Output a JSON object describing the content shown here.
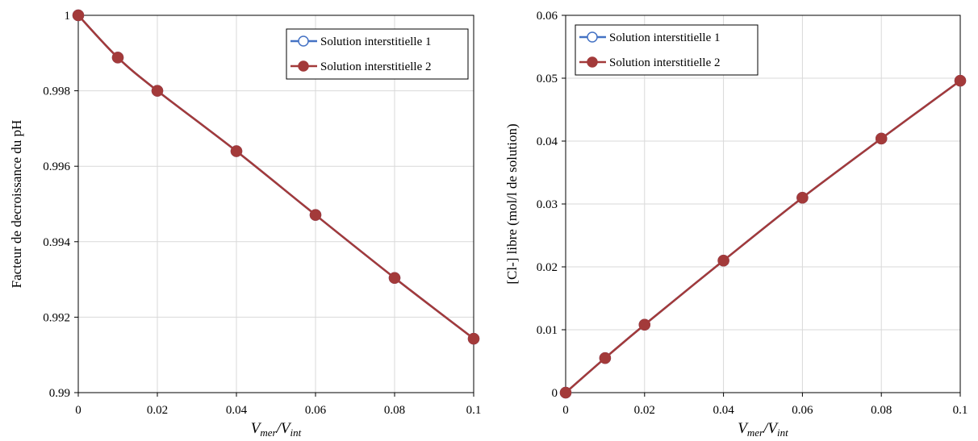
{
  "chart_data": [
    {
      "type": "line",
      "xlabel": "V_mer/V_int",
      "xlabel_main": "V",
      "xlabel_sub1": "mer",
      "xlabel_sep": "/V",
      "xlabel_sub2": "int",
      "ylabel": "Facteur de decroissance  du pH",
      "x": [
        0,
        0.01,
        0.02,
        0.04,
        0.06,
        0.08,
        0.1
      ],
      "xlim": [
        0,
        0.1
      ],
      "ylim": [
        0.99,
        1
      ],
      "x_ticks": [
        "0",
        "0.02",
        "0.04",
        "0.06",
        "0.08",
        "0.1"
      ],
      "y_ticks": [
        "0.99",
        "0.992",
        "0.994",
        "0.996",
        "0.998",
        "1"
      ],
      "grid": true,
      "legend_position": "top-right",
      "series": [
        {
          "name": "Solution interstitielle 1",
          "color": "#4472c4",
          "marker": "open-circle",
          "values": [
            1,
            0.99888,
            0.998,
            0.9964,
            0.99471,
            0.99304,
            0.99143
          ]
        },
        {
          "name": "Solution interstitielle 2",
          "color": "#a33a3a",
          "marker": "filled-circle",
          "values": [
            1,
            0.99888,
            0.998,
            0.9964,
            0.99471,
            0.99304,
            0.99143
          ]
        }
      ]
    },
    {
      "type": "line",
      "xlabel": "V_mer/V_int",
      "xlabel_main": "V",
      "xlabel_sub1": "mer",
      "xlabel_sep": "/V",
      "xlabel_sub2": "int",
      "ylabel": "[Cl-] libre  (mol/l de solution)",
      "x": [
        0,
        0.01,
        0.02,
        0.04,
        0.06,
        0.08,
        0.1
      ],
      "xlim": [
        0,
        0.1
      ],
      "ylim": [
        0,
        0.06
      ],
      "x_ticks": [
        "0",
        "0.02",
        "0.04",
        "0.06",
        "0.08",
        "0.1"
      ],
      "y_ticks": [
        "0",
        "0.01",
        "0.02",
        "0.03",
        "0.04",
        "0.05",
        "0.06"
      ],
      "grid": true,
      "legend_position": "top-left",
      "series": [
        {
          "name": "Solution interstitielle 1",
          "color": "#4472c4",
          "marker": "open-circle",
          "values": [
            0,
            0.0055,
            0.0108,
            0.021,
            0.031,
            0.0404,
            0.0496
          ]
        },
        {
          "name": "Solution interstitielle 2",
          "color": "#a33a3a",
          "marker": "filled-circle",
          "values": [
            0,
            0.0055,
            0.0108,
            0.021,
            0.031,
            0.0404,
            0.0496
          ]
        }
      ]
    }
  ]
}
